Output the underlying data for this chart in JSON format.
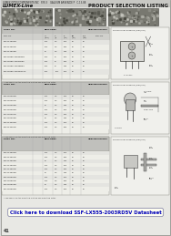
{
  "bg_color": "#d8d8d8",
  "page_bg": "#e8e8e4",
  "white": "#f0f0ec",
  "dark": "#282828",
  "med_gray": "#a0a0a0",
  "light_gray": "#c8c8c4",
  "header_bg": "#b0b0ac",
  "link_text": "Click here to download SSF-LX555-2003RD5V Datasheet",
  "title_line1": "LUMEX OPTO/COMPONENTS INC   SYS 3    GALLIUM ARSENIDE P   C-13-88",
  "title_brand": "LUMEX-Line",
  "title_right": "PRODUCT SELECTION LISTING",
  "page_num": "41"
}
